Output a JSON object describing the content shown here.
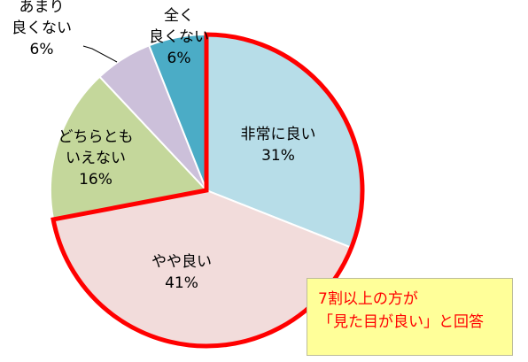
{
  "chart_data": {
    "type": "pie",
    "categories": [
      "非常に良い",
      "やや良い",
      "どちらともいえない",
      "あまり良くない",
      "全く良くない"
    ],
    "values": [
      31,
      41,
      16,
      6,
      6
    ],
    "value_labels": [
      "31%",
      "41%",
      "16%",
      "6%",
      "6%"
    ],
    "label_lines": [
      [
        "非常に良い"
      ],
      [
        "やや良い"
      ],
      [
        "どちらとも",
        "いえない"
      ],
      [
        "あまり",
        "良くない"
      ],
      [
        "全く",
        "良くない"
      ]
    ],
    "colors": [
      "#b7dde8",
      "#f2dcdb",
      "#c4d79b",
      "#ccc0da",
      "#4bacc6"
    ],
    "highlight_color": "#ff0000",
    "highlighted": [
      "非常に良い",
      "やや良い"
    ],
    "start": "12 o'clock, clockwise"
  },
  "callout": {
    "line1": "7割以上の方が",
    "line2": "「見た目が良い」と回答",
    "background": "#ffff99",
    "text_color": "#ff0000"
  }
}
